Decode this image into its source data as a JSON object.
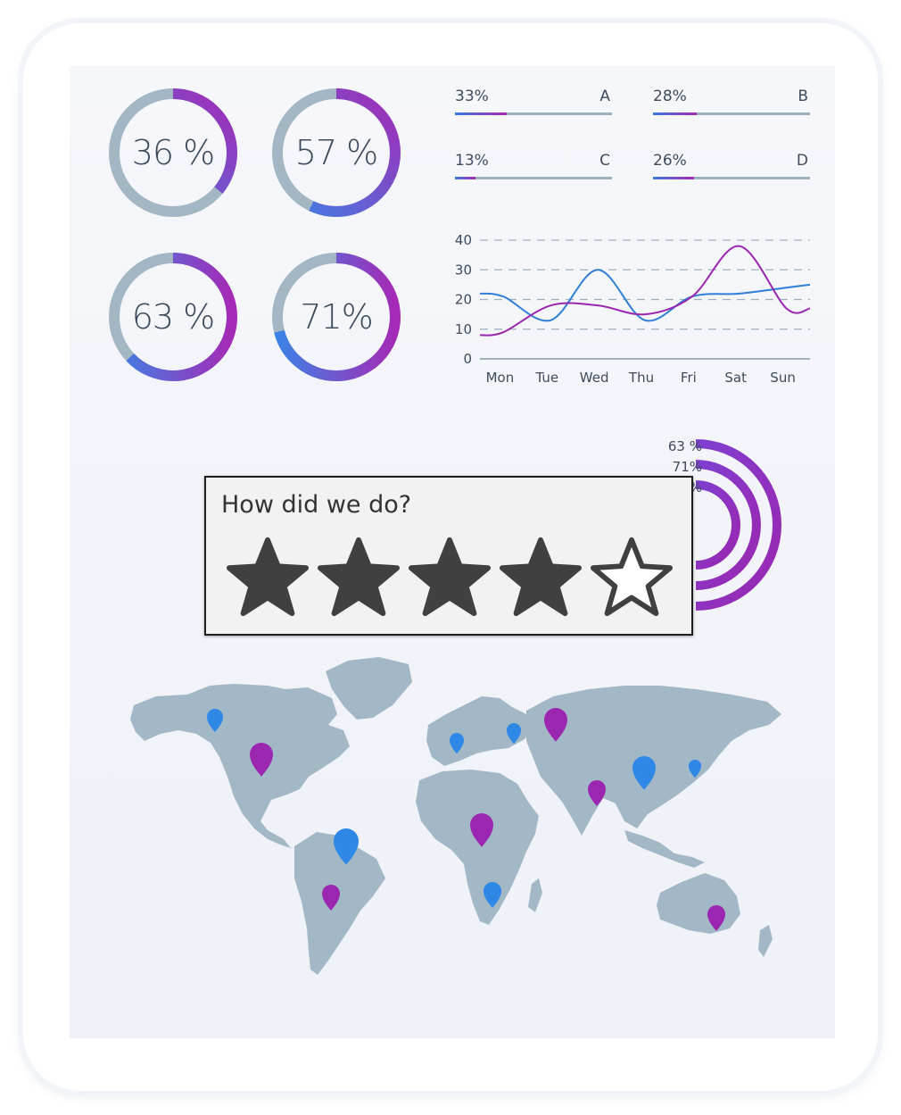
{
  "dashboard": {
    "donuts": [
      {
        "label": "36 %",
        "value": 36
      },
      {
        "label": "57 %",
        "value": 57
      },
      {
        "label": "63 %",
        "value": 63
      },
      {
        "label": "71%",
        "value": 71
      }
    ],
    "progress_bars": [
      {
        "percent_label": "33%",
        "letter": "A",
        "value": 33
      },
      {
        "percent_label": "28%",
        "letter": "B",
        "value": 28
      },
      {
        "percent_label": "13%",
        "letter": "C",
        "value": 13
      },
      {
        "percent_label": "26%",
        "letter": "D",
        "value": 26
      }
    ],
    "radial_labels": [
      "63 %",
      "71%",
      "%"
    ]
  },
  "chart_data": {
    "type": "line",
    "categories": [
      "Mon",
      "Tue",
      "Wed",
      "Thu",
      "Fri",
      "Sat",
      "Sun"
    ],
    "yticks": [
      "0",
      "10",
      "20",
      "30",
      "40"
    ],
    "ylim": [
      0,
      40
    ],
    "grid": true,
    "series": [
      {
        "color": "#2f7fd8",
        "values": [
          21,
          13,
          30,
          13,
          21,
          22,
          24
        ]
      },
      {
        "color": "#9b27b0",
        "values": [
          9,
          18,
          18,
          15,
          21,
          38,
          17
        ]
      }
    ]
  },
  "rating": {
    "title": "How did we do?",
    "value": 4,
    "max": 5
  },
  "map": {
    "pins": [
      {
        "color": "#2f88e6",
        "region": "north-america"
      },
      {
        "color": "#9b27b0",
        "region": "north-america"
      },
      {
        "color": "#2f88e6",
        "region": "south-america"
      },
      {
        "color": "#9b27b0",
        "region": "south-america"
      },
      {
        "color": "#2f88e6",
        "region": "europe"
      },
      {
        "color": "#2f88e6",
        "region": "europe"
      },
      {
        "color": "#9b27b0",
        "region": "russia"
      },
      {
        "color": "#9b27b0",
        "region": "africa"
      },
      {
        "color": "#2f88e6",
        "region": "africa"
      },
      {
        "color": "#9b27b0",
        "region": "india"
      },
      {
        "color": "#2f88e6",
        "region": "china"
      },
      {
        "color": "#2f88e6",
        "region": "japan"
      },
      {
        "color": "#9b27b0",
        "region": "australia"
      }
    ]
  },
  "colors": {
    "accent_blue": "#2f7fd8",
    "accent_purple": "#9b27b0",
    "track_gray": "#9db0be",
    "land": "#a3b8c6"
  }
}
